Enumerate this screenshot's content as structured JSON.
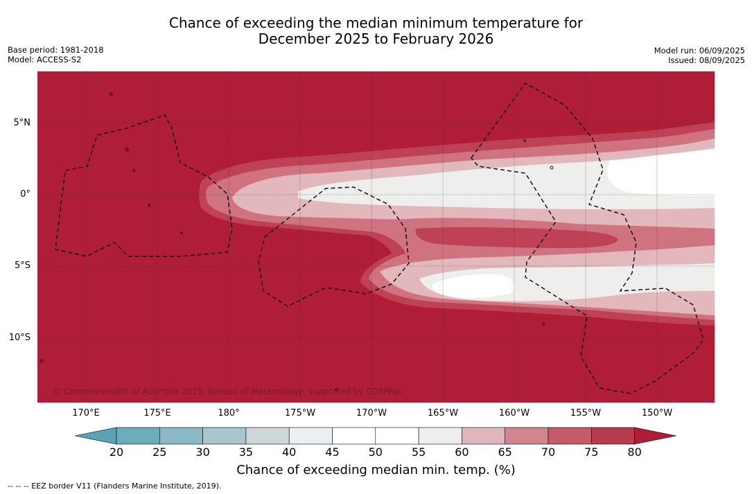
{
  "title": {
    "line1": "Chance of exceeding the median minimum temperature for",
    "line2": "December 2025 to February 2026"
  },
  "meta_left": {
    "base_period": "Base period: 1981-2018",
    "model": "Model: ACCESS-S2"
  },
  "meta_right": {
    "model_run": "Model run: 06/09/2025",
    "issued": "Issued: 08/09/2025"
  },
  "copyright": "© Commonwealth of Australia 2025, Bureau of Meteorology, supported by COSPPac",
  "lat_labels": [
    "5°N",
    "0°",
    "5°S",
    "10°S"
  ],
  "lon_labels": [
    "170°E",
    "175°E",
    "180°",
    "175°W",
    "170°W",
    "165°W",
    "160°W",
    "155°W",
    "150°W"
  ],
  "colorbar": {
    "ticks": [
      "20",
      "25",
      "30",
      "35",
      "40",
      "45",
      "50",
      "55",
      "60",
      "65",
      "70",
      "75",
      "80"
    ],
    "colors": [
      "#5aa3b4",
      "#6aaebd",
      "#89b9c4",
      "#a8c6cb",
      "#cdd6d8",
      "#ebeff1",
      "#ffffff",
      "#ffffff",
      "#eeeeec",
      "#e0b5bb",
      "#d1858f",
      "#c55a69",
      "#b83a4e",
      "#b01d37"
    ],
    "title": "Chance of exceeding median min. temp. (%)"
  },
  "footnote": "--  --  -- EEZ border V11 (Flanders Marine Institute, 2019).",
  "map_colors": {
    "c80": "#b01d37",
    "c75": "#bf4155",
    "c70": "#cf7380",
    "c65": "#e2b8bd",
    "c60": "#eeeeec",
    "c55": "#ffffff",
    "grid": "#333333"
  }
}
